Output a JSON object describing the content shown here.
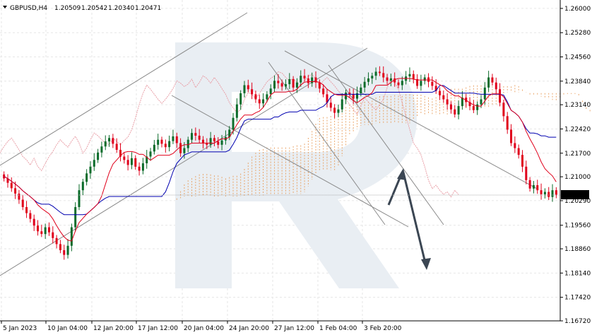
{
  "header": {
    "symbol": "GBPUSD,H4",
    "open": "1.20509",
    "high": "1.20542",
    "low": "1.20340",
    "close": "1.20471"
  },
  "chart_data": {
    "type": "candlestick",
    "symbol": "GBPUSD",
    "timeframe": "H4",
    "ohlc": {
      "open": 1.20509,
      "high": 1.20542,
      "low": 1.2034,
      "close": 1.20471
    },
    "current_price": 1.20471,
    "ylim": [
      1.1672,
      1.2625
    ],
    "y_ticks": [
      "1.26000",
      "1.25280",
      "1.24560",
      "1.23840",
      "1.23140",
      "1.22420",
      "1.21700",
      "1.21000",
      "1.20290",
      "1.19560",
      "1.18860",
      "1.18140",
      "1.17420",
      "1.16720"
    ],
    "x_ticks": [
      "5 Jan 2023",
      "10 Jan 04:00",
      "12 Jan 20:00",
      "17 Jan 12:00",
      "20 Jan 04:00",
      "24 Jan 20:00",
      "27 Jan 12:00",
      "1 Feb 04:00",
      "3 Feb 20:00"
    ],
    "indicators": [
      "Ichimoku Kinko Hyo"
    ],
    "colors": {
      "bull": "#0b6b2a",
      "bear": "#e0001b",
      "tenkan": "#e0001b",
      "kijun": "#0000b0",
      "cloud": "#e89a55",
      "lagging": "#e9a0a8",
      "lines": "#8a8a8a",
      "arrow": "#3b4653",
      "price_label_bg": "#000000"
    },
    "closes": [
      1.2095,
      1.2082,
      1.2066,
      1.205,
      1.2032,
      1.201,
      1.1992,
      1.1975,
      1.1955,
      1.1938,
      1.193,
      1.195,
      1.1935,
      1.1918,
      1.19,
      1.1882,
      1.1868,
      1.1895,
      1.195,
      1.201,
      1.206,
      1.2085,
      1.211,
      1.213,
      1.215,
      1.2172,
      1.219,
      1.2205,
      1.2215,
      1.2198,
      1.218,
      1.216,
      1.215,
      1.2135,
      1.2155,
      1.213,
      1.2118,
      1.214,
      1.216,
      1.2175,
      1.2195,
      1.221,
      1.2198,
      1.2188,
      1.2206,
      1.222,
      1.22,
      1.217,
      1.2185,
      1.221,
      1.223,
      1.2222,
      1.221,
      1.22,
      1.2195,
      1.2215,
      1.2205,
      1.2195,
      1.2208,
      1.2218,
      1.224,
      1.2275,
      1.2315,
      1.2348,
      1.2372,
      1.236,
      1.2345,
      1.233,
      1.2318,
      1.233,
      1.2345,
      1.2362,
      1.2385,
      1.2378,
      1.2368,
      1.2375,
      1.239,
      1.2365,
      1.238,
      1.24,
      1.2392,
      1.2378,
      1.2395,
      1.238,
      1.2362,
      1.2345,
      1.232,
      1.2305,
      1.229,
      1.23,
      1.233,
      1.235,
      1.2345,
      1.2332,
      1.2348,
      1.2365,
      1.2382,
      1.2392,
      1.24,
      1.2412,
      1.2408,
      1.2395,
      1.2385,
      1.2392,
      1.238,
      1.2372,
      1.2385,
      1.2398,
      1.2405,
      1.239,
      1.237,
      1.2385,
      1.2395,
      1.2382,
      1.237,
      1.2355,
      1.2342,
      1.233,
      1.2315,
      1.23,
      1.2285,
      1.231,
      1.2335,
      1.2322,
      1.231,
      1.2298,
      1.2315,
      1.233,
      1.2365,
      1.2395,
      1.238,
      1.236,
      1.232,
      1.228,
      1.224,
      1.22,
      1.2185,
      1.2165,
      1.213,
      1.209,
      1.2065,
      1.2075,
      1.206,
      1.2048,
      1.2055,
      1.204,
      1.206,
      1.2047
    ]
  },
  "price_label": "1.20471"
}
